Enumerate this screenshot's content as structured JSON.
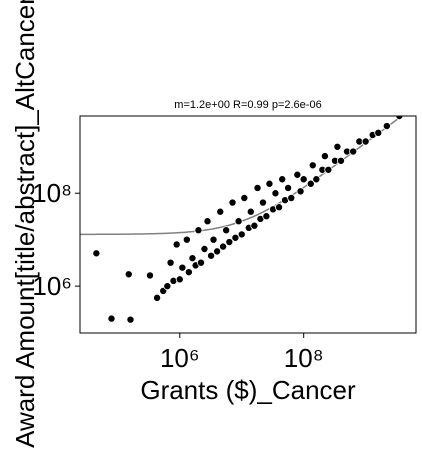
{
  "chart_data": {
    "type": "scatter",
    "title": "m=1.2e+00 R=0.99 p=2.6e-06",
    "x_label": "Grants ($)_Cancer",
    "y_label": "Award Amount[title/abstract]_AltCancer",
    "log_x": true,
    "log_y": true,
    "xlim": [
      24500,
      6500000000
    ],
    "ylim": [
      98000,
      4600000000
    ],
    "xticks": [
      {
        "value": 1000000,
        "label": "10⁶"
      },
      {
        "value": 100000000,
        "label": "10⁸"
      }
    ],
    "yticks": [
      {
        "value": 1000000,
        "label": "10⁶"
      },
      {
        "value": 100000000,
        "label": "10⁸"
      }
    ],
    "color": "#000000",
    "trendline": {
      "slope": 1.2,
      "intercept": 13000000,
      "color": "#808080"
    },
    "x": [
      45000,
      79000,
      150000,
      160000,
      330000,
      430000,
      540000,
      630000,
      710000,
      790000,
      890000,
      1000000,
      1100000,
      1300000,
      1400000,
      1600000,
      1800000,
      2000000,
      2200000,
      2500000,
      2800000,
      3200000,
      3500000,
      4000000,
      4500000,
      5000000,
      5600000,
      6300000,
      7100000,
      7900000,
      8900000,
      10000000,
      11000000,
      13000000,
      14000000,
      16000000,
      18000000,
      20000000,
      22000000,
      25000000,
      28000000,
      32000000,
      35000000,
      40000000,
      45000000,
      50000000,
      56000000,
      63000000,
      79000000,
      89000000,
      100000000,
      130000000,
      140000000,
      160000000,
      200000000,
      220000000,
      250000000,
      320000000,
      350000000,
      400000000,
      500000000,
      630000000,
      790000000,
      1000000000,
      1300000000,
      1600000000,
      2200000000,
      3500000000
    ],
    "values": [
      5100000,
      200000,
      1800000,
      190000,
      1700000,
      560000,
      790000,
      1000000,
      3200000,
      1300000,
      7900000,
      1400000,
      2500000,
      10000000,
      2000000,
      4000000,
      2800000,
      16000000,
      3200000,
      6300000,
      25000000,
      4500000,
      10000000,
      5600000,
      40000000,
      7100000,
      16000000,
      8900000,
      63000000,
      11000000,
      25000000,
      13000000,
      79000000,
      18000000,
      40000000,
      20000000,
      130000000,
      28000000,
      63000000,
      32000000,
      160000000,
      45000000,
      100000000,
      50000000,
      200000000,
      71000000,
      130000000,
      79000000,
      250000000,
      110000000,
      200000000,
      160000000,
      400000000,
      200000000,
      320000000,
      630000000,
      320000000,
      500000000,
      1000000000,
      500000000,
      790000000,
      790000000,
      1300000000,
      1300000000,
      1800000000,
      2000000000,
      2800000000,
      4600000000
    ]
  }
}
